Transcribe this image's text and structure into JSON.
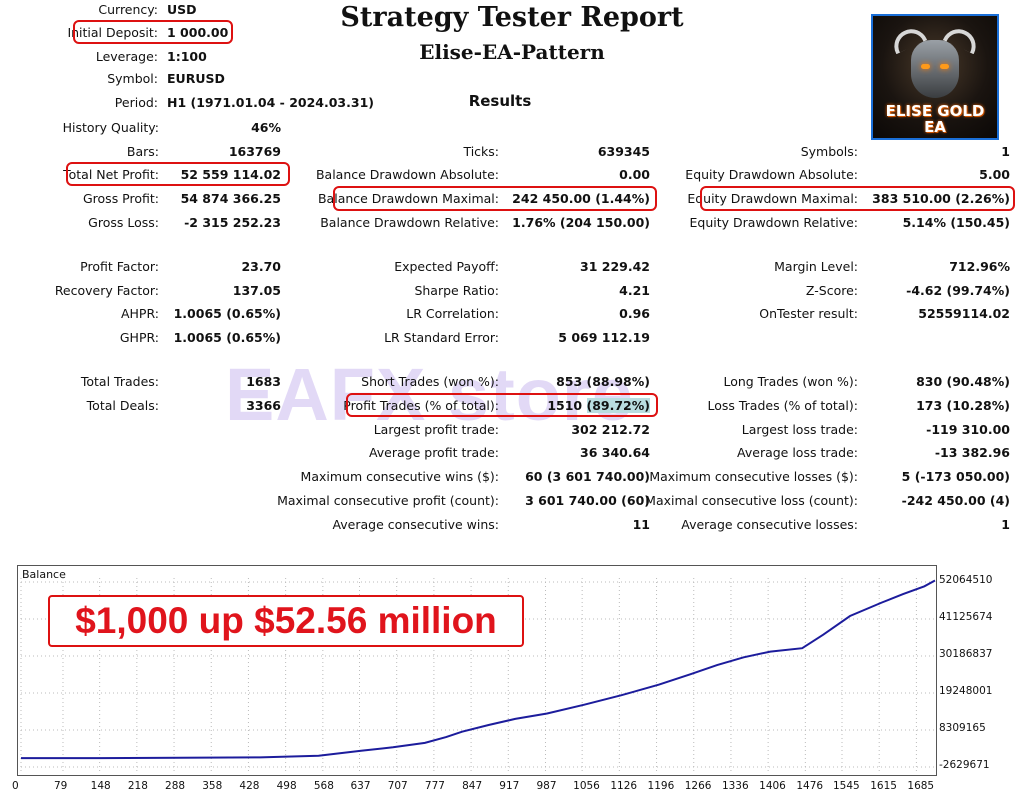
{
  "report": {
    "title": "Strategy Tester Report",
    "subtitle": "Elise-EA-Pattern",
    "results_heading": "Results"
  },
  "header_fields": [
    {
      "label": "Currency:",
      "value": "USD"
    },
    {
      "label": "Initial Deposit:",
      "value": "1 000.00"
    },
    {
      "label": "Leverage:",
      "value": "1:100"
    },
    {
      "label": "Symbol:",
      "value": "EURUSD"
    },
    {
      "label": "Period:",
      "value": "H1 (1971.01.04 - 2024.03.31)"
    }
  ],
  "col1": [
    {
      "label": "History Quality:",
      "value": "46%"
    },
    {
      "label": "Bars:",
      "value": "163769"
    },
    {
      "label": "Total Net Profit:",
      "value": "52 559 114.02"
    },
    {
      "label": "Gross Profit:",
      "value": "54 874 366.25"
    },
    {
      "label": "Gross Loss:",
      "value": "-2 315 252.23"
    },
    {
      "label": "Profit Factor:",
      "value": "23.70"
    },
    {
      "label": "Recovery Factor:",
      "value": "137.05"
    },
    {
      "label": "AHPR:",
      "value": "1.0065 (0.65%)"
    },
    {
      "label": "GHPR:",
      "value": "1.0065 (0.65%)"
    },
    {
      "label": "Total Trades:",
      "value": "1683"
    },
    {
      "label": "Total Deals:",
      "value": "3366"
    }
  ],
  "col2": [
    {
      "label": "Ticks:",
      "value": "639345"
    },
    {
      "label": "Balance Drawdown Absolute:",
      "value": "0.00"
    },
    {
      "label": "Balance Drawdown Maximal:",
      "value": "242 450.00 (1.44%)"
    },
    {
      "label": "Balance Drawdown Relative:",
      "value": "1.76% (204 150.00)"
    },
    {
      "label": "Expected Payoff:",
      "value": "31 229.42"
    },
    {
      "label": "Sharpe Ratio:",
      "value": "4.21"
    },
    {
      "label": "LR Correlation:",
      "value": "0.96"
    },
    {
      "label": "LR Standard Error:",
      "value": "5 069 112.19"
    },
    {
      "label": "Short Trades (won %):",
      "value": "853 (88.98%)"
    },
    {
      "label": "Profit Trades (% of total):",
      "value": "1510 (89.72%)"
    },
    {
      "label": "Largest profit trade:",
      "value": "302 212.72"
    },
    {
      "label": "Average profit trade:",
      "value": "36 340.64"
    },
    {
      "label": "Maximum consecutive wins ($):",
      "value": "60 (3 601 740.00)"
    },
    {
      "label": "Maximal consecutive profit (count):",
      "value": "3 601 740.00 (60)"
    },
    {
      "label": "Average consecutive wins:",
      "value": "11"
    }
  ],
  "col3": [
    {
      "label": "Symbols:",
      "value": "1"
    },
    {
      "label": "Equity Drawdown Absolute:",
      "value": "5.00"
    },
    {
      "label": "Equity Drawdown Maximal:",
      "value": "383 510.00 (2.26%)"
    },
    {
      "label": "Equity Drawdown Relative:",
      "value": "5.14% (150.45)"
    },
    {
      "label": "Margin Level:",
      "value": "712.96%"
    },
    {
      "label": "Z-Score:",
      "value": "-4.62 (99.74%)"
    },
    {
      "label": "OnTester result:",
      "value": "52559114.02"
    },
    {
      "label": "Long Trades (won %):",
      "value": "830 (90.48%)"
    },
    {
      "label": "Loss Trades (% of total):",
      "value": "173 (10.28%)"
    },
    {
      "label": "Largest loss trade:",
      "value": "-119 310.00"
    },
    {
      "label": "Average loss trade:",
      "value": "-13 382.96"
    },
    {
      "label": "Maximum consecutive losses ($):",
      "value": "5 (-173 050.00)"
    },
    {
      "label": "Maximal consecutive loss (count):",
      "value": "-242 450.00 (4)"
    },
    {
      "label": "Average consecutive losses:",
      "value": "1"
    }
  ],
  "logo": {
    "line1": "ELISE GOLD",
    "line2": "EA"
  },
  "watermark": "EAFX store",
  "promo": "$1,000 up $52.56 million",
  "colors": {
    "highlight": "#dd1111",
    "balance_line": "#1c1c9c",
    "promo_text": "#e0141c"
  },
  "chart_data": {
    "type": "line",
    "title": "Balance",
    "x_ticks": [
      "0",
      "79",
      "148",
      "218",
      "288",
      "358",
      "428",
      "498",
      "568",
      "637",
      "707",
      "777",
      "847",
      "917",
      "987",
      "1056",
      "1126",
      "1196",
      "1266",
      "1336",
      "1406",
      "1476",
      "1545",
      "1615",
      "1685"
    ],
    "y_ticks": [
      "52064510",
      "41125674",
      "30186837",
      "19248001",
      "8309165",
      "-2629671"
    ],
    "ylim": [
      -2629671,
      52064510
    ],
    "xlim": [
      0,
      1685
    ],
    "series": [
      {
        "points": [
          [
            0,
            1000
          ],
          [
            150,
            1000
          ],
          [
            300,
            80000
          ],
          [
            450,
            200000
          ],
          [
            560,
            700000
          ],
          [
            640,
            2200000
          ],
          [
            700,
            3200000
          ],
          [
            760,
            4500000
          ],
          [
            800,
            6200000
          ],
          [
            830,
            7800000
          ],
          [
            880,
            9800000
          ],
          [
            930,
            11600000
          ],
          [
            990,
            13200000
          ],
          [
            1060,
            15800000
          ],
          [
            1130,
            18600000
          ],
          [
            1200,
            21700000
          ],
          [
            1260,
            24800000
          ],
          [
            1310,
            27500000
          ],
          [
            1360,
            29800000
          ],
          [
            1410,
            31500000
          ],
          [
            1470,
            32500000
          ],
          [
            1510,
            36500000
          ],
          [
            1560,
            42000000
          ],
          [
            1620,
            46000000
          ],
          [
            1660,
            48500000
          ],
          [
            1700,
            50800000
          ],
          [
            1720,
            52500000
          ]
        ]
      }
    ]
  }
}
